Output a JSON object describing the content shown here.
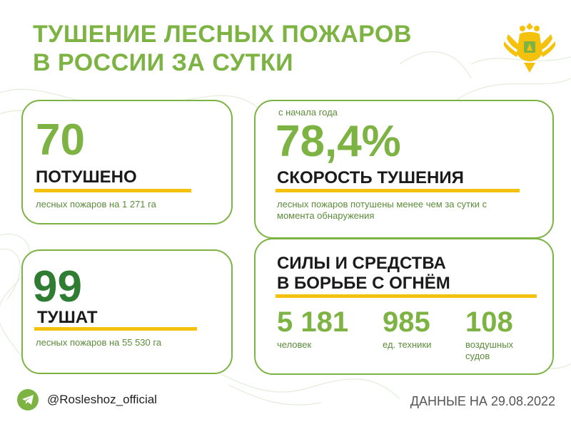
{
  "title": {
    "line1": "ТУШЕНИЕ ЛЕСНЫХ ПОЖАРОВ",
    "line2": "В РОССИИ ЗА СУТКИ"
  },
  "colors": {
    "accent_green": "#7cb342",
    "dark_green": "#2e7d32",
    "highlight_yellow": "#f4c20d"
  },
  "extinguished": {
    "value": "70",
    "label": "ПОТУШЕНО",
    "note": "лесных пожаров на 1 271 га"
  },
  "burning": {
    "value": "99",
    "label": "ТУШАТ",
    "note": "лесных пожаров на 55 530 га"
  },
  "speed": {
    "since": "с начала года",
    "value": "78,4%",
    "label": "СКОРОСТЬ ТУШЕНИЯ",
    "note": "лесных пожаров потушены менее чем за сутки с момента обнаружения"
  },
  "forces": {
    "title_line1": "СИЛЫ И СРЕДСТВА",
    "title_line2": "В БОРЬБЕ С ОГНЁМ",
    "items": [
      {
        "value": "5 181",
        "label": "человек"
      },
      {
        "value": "985",
        "label": "ед. техники"
      },
      {
        "value": "108",
        "label": "воздушных судов"
      }
    ]
  },
  "footer": {
    "icon": "telegram-icon",
    "handle": "@Rosleshoz_official",
    "date": "ДАННЫЕ НА 29.08.2022"
  },
  "emblem": "coat-of-arms-emblem"
}
